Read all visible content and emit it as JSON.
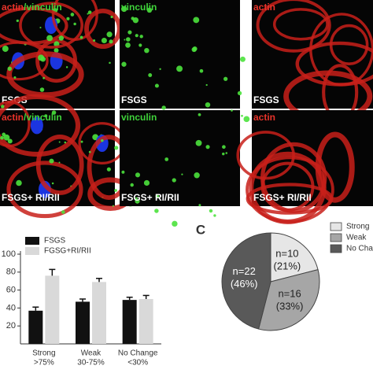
{
  "figure": {
    "panel_label": "C",
    "images": [
      {
        "stains": [
          {
            "text": "actin",
            "color": "#e8332a"
          },
          {
            "text": "/vinculin",
            "color": "#3fd23a"
          }
        ],
        "condition": "FSGS",
        "tint": "mix"
      },
      {
        "stains": [
          {
            "text": "vinculin",
            "color": "#3fd23a"
          }
        ],
        "condition": "FSGS",
        "tint": "green"
      },
      {
        "stains": [
          {
            "text": "actin",
            "color": "#e8332a"
          }
        ],
        "condition": "FSGS",
        "tint": "red"
      },
      {
        "stains": [
          {
            "text": "actin",
            "color": "#e8332a"
          },
          {
            "text": "/vinculin",
            "color": "#3fd23a"
          }
        ],
        "condition": "FSGS+ RI/RII",
        "tint": "mix"
      },
      {
        "stains": [
          {
            "text": "vinculin",
            "color": "#3fd23a"
          }
        ],
        "condition": "FSGS+ RI/RII",
        "tint": "green"
      },
      {
        "stains": [
          {
            "text": "actin",
            "color": "#e8332a"
          }
        ],
        "condition": "FSGS+ RI/RII",
        "tint": "red"
      }
    ]
  },
  "chart_data": [
    {
      "type": "bar",
      "categories": [
        "Strong",
        "Weak",
        "No Change"
      ],
      "category_sublabels": [
        ">75%",
        "30-75%",
        "<30%"
      ],
      "series": [
        {
          "name": "FSGS",
          "color": "#111111",
          "values": [
            37,
            47,
            49
          ],
          "errors": [
            4,
            3,
            3
          ]
        },
        {
          "name": "FGSG+RI/RII",
          "color": "#d9d9d9",
          "values": [
            76,
            69,
            50
          ],
          "errors": [
            7,
            4,
            4
          ]
        }
      ],
      "ylim": [
        0,
        100
      ],
      "yticks": [
        20,
        40,
        60,
        80,
        100
      ]
    },
    {
      "type": "pie",
      "categories": [
        "Strong",
        "Weak",
        "No Change"
      ],
      "values": [
        21,
        33,
        46
      ],
      "colors": [
        "#e6e6e6",
        "#a6a6a6",
        "#595959"
      ],
      "value_labels": [
        [
          "n=10",
          "(21%)"
        ],
        [
          "n=16",
          "(33%)"
        ],
        [
          "n=22",
          "(46%)"
        ]
      ]
    }
  ]
}
